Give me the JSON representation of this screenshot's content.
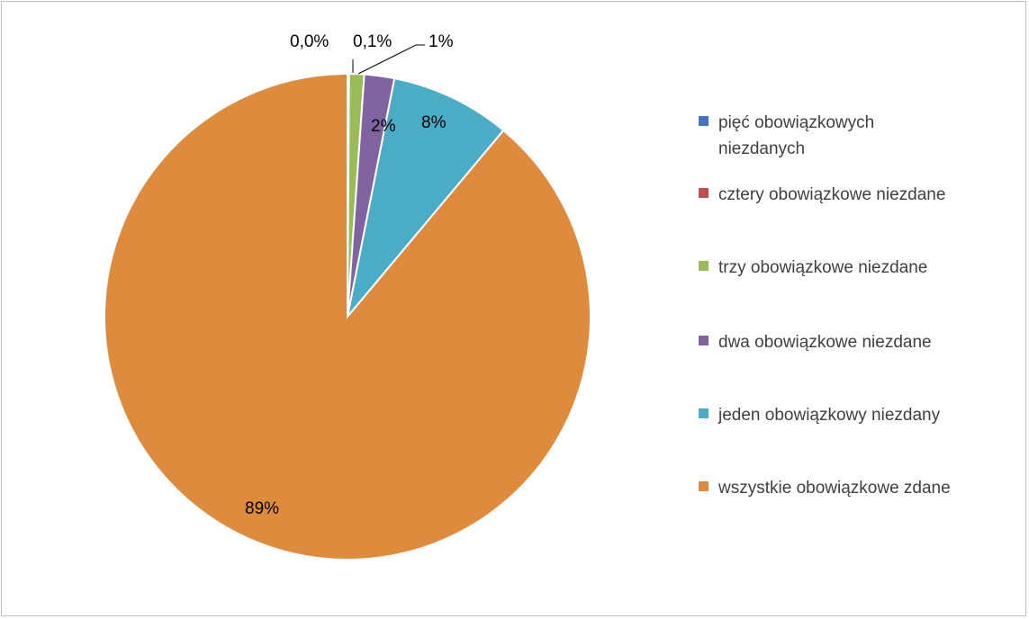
{
  "chart_data": {
    "type": "pie",
    "title": "",
    "legend_position": "right",
    "series": [
      {
        "name": "pięć obowiązkowych niezdanych",
        "value": 0.0,
        "label": "0,0%",
        "color": "#4472C4"
      },
      {
        "name": "cztery obowiązkowe niezdane",
        "value": 0.1,
        "label": "0,1%",
        "color": "#C0504D"
      },
      {
        "name": "trzy obowiązkowe niezdane",
        "value": 1,
        "label": "1%",
        "color": "#9BBB59"
      },
      {
        "name": "dwa obowiązkowe niezdane",
        "value": 2,
        "label": "2%",
        "color": "#8064A2"
      },
      {
        "name": "jeden obowiązkowy niezdany",
        "value": 8,
        "label": "8%",
        "color": "#4BACC6"
      },
      {
        "name": "wszystkie obowiązkowe zdane",
        "value": 89,
        "label": "89%",
        "color": "#DE8B3E"
      }
    ]
  }
}
